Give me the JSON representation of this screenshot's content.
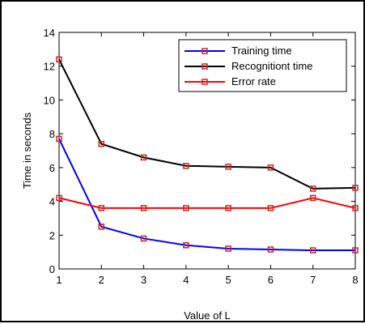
{
  "chart_data": {
    "type": "line",
    "title": "",
    "xlabel": "Value of L",
    "ylabel": "Time in seconds",
    "x": [
      1,
      2,
      3,
      4,
      5,
      6,
      7,
      8
    ],
    "xlim": [
      1,
      8
    ],
    "ylim": [
      0,
      14
    ],
    "x_ticks": [
      "1",
      "2",
      "3",
      "4",
      "5",
      "6",
      "7",
      "8"
    ],
    "y_ticks": [
      "0",
      "2",
      "4",
      "6",
      "8",
      "10",
      "12",
      "14"
    ],
    "grid": false,
    "legend_position": "top-right",
    "marker": "square",
    "series": [
      {
        "name": "Training time",
        "color": "#0000ff",
        "values": [
          7.7,
          2.5,
          1.8,
          1.4,
          1.2,
          1.15,
          1.1,
          1.1
        ]
      },
      {
        "name": "Recognitiont time",
        "color": "#000000",
        "values": [
          12.4,
          7.4,
          6.6,
          6.1,
          6.05,
          6.0,
          4.75,
          4.8
        ]
      },
      {
        "name": "Error rate",
        "color": "#ff0000",
        "values": [
          4.2,
          3.6,
          3.6,
          3.6,
          3.6,
          3.6,
          4.2,
          3.6
        ]
      }
    ],
    "marker_color": "#cc2222"
  }
}
